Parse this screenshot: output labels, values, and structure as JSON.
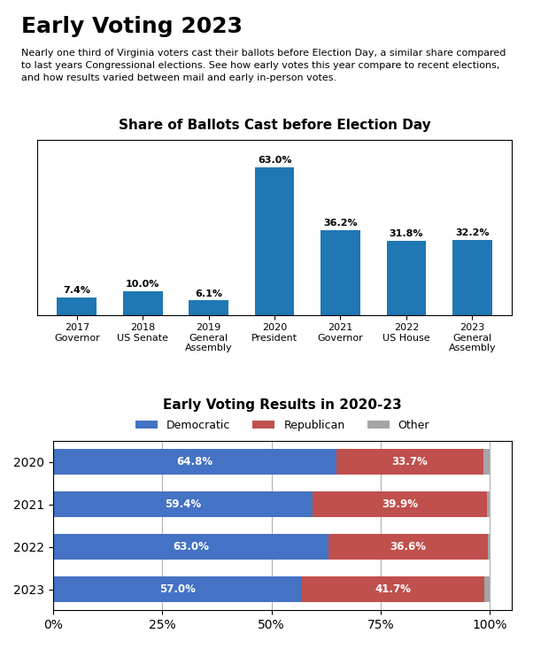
{
  "title": "Early Voting 2023",
  "subtitle": "Nearly one third of Virginia voters cast their ballots before Election Day, a similar share compared\nto last years Congressional elections. See how early votes this year compare to recent elections,\nand how results varied between mail and early in-person votes.",
  "chart_data": [
    {
      "type": "bar",
      "title": "Share of Ballots Cast before Election Day",
      "categories": [
        "2017\nGovernor",
        "2018\nUS Senate",
        "2019\nGeneral\nAssembly",
        "2020\nPresident",
        "2021\nGovernor",
        "2022\nUS House",
        "2023\nGeneral\nAssembly"
      ],
      "values": [
        7.4,
        10.0,
        6.1,
        63.0,
        36.2,
        31.8,
        32.2
      ],
      "value_labels": [
        "7.4%",
        "10.0%",
        "6.1%",
        "63.0%",
        "36.2%",
        "31.8%",
        "32.2%"
      ],
      "data_labels": true,
      "ylim": [
        0,
        75
      ],
      "tick_labels": "x"
    },
    {
      "type": "bar",
      "title": "Early Voting Results in 2020-23",
      "orientation": "horizontal",
      "stacked": true,
      "categories": [
        "2020",
        "2021",
        "2022",
        "2023"
      ],
      "series": [
        {
          "name": "Democratic",
          "color": "#4472c4",
          "values": [
            64.8,
            59.4,
            63.0,
            57.0
          ],
          "data_labels": true,
          "value_labels": [
            "64.8%",
            "59.4%",
            "63.0%",
            "57.0%"
          ]
        },
        {
          "name": "Republican",
          "color": "#c0504d",
          "values": [
            33.7,
            39.9,
            36.6,
            41.7
          ],
          "data_labels": true,
          "value_labels": [
            "33.7%",
            "39.9%",
            "36.6%",
            "41.7%"
          ]
        },
        {
          "name": "Other",
          "color": "#a5a5a5",
          "values": [
            1.5,
            0.7,
            0.4,
            1.3
          ]
        }
      ],
      "xlim": [
        0,
        105
      ],
      "xticks": [
        {
          "value": 0,
          "label": "0%"
        },
        {
          "value": 25,
          "label": "25%"
        },
        {
          "value": 50,
          "label": "50%"
        },
        {
          "value": 75,
          "label": "75%"
        },
        {
          "value": 100,
          "label": "100%"
        }
      ],
      "grid": true,
      "legend": "upper center"
    }
  ]
}
